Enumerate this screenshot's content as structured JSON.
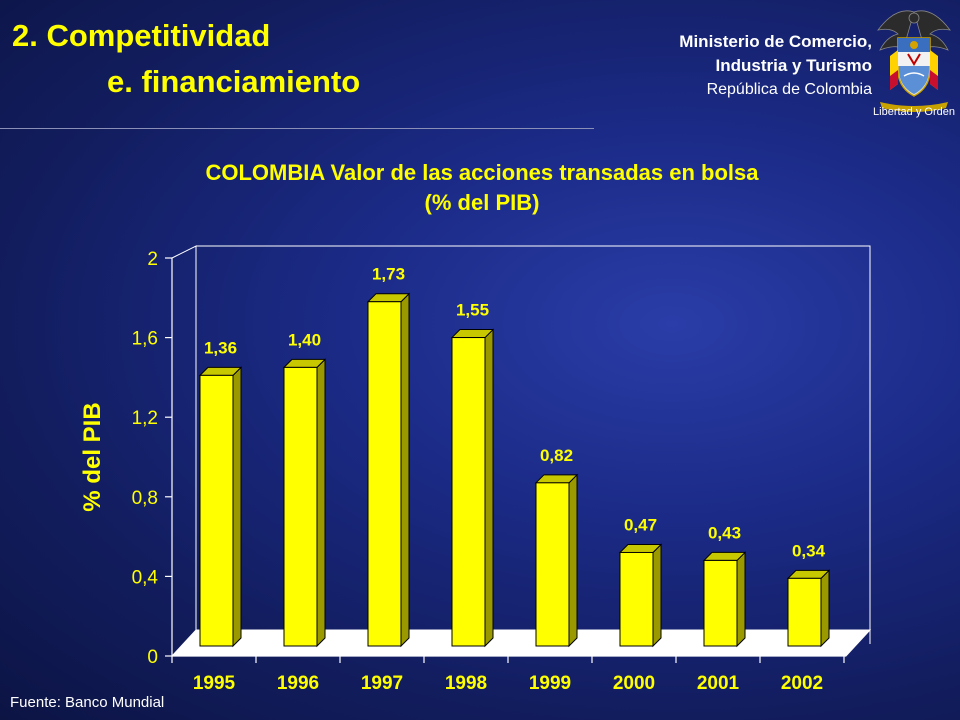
{
  "slide": {
    "title_line1": "2. Competitividad",
    "title_line2": "e. financiamiento",
    "ministry_line1": "Ministerio de Comercio,",
    "ministry_line2": "Industria y Turismo",
    "ministry_line3": "República de Colombia",
    "emblem_motto": "Libertad y Orden",
    "source": "Fuente: Banco Mundial",
    "colors": {
      "background": "#1b2a86",
      "accent": "#ffff00",
      "bar_face": "#ffff00",
      "bar_side": "#9a9a00"
    }
  },
  "chart_data": {
    "type": "bar",
    "title_line1": "COLOMBIA Valor de las acciones transadas en bolsa",
    "title_line2": "(% del PIB)",
    "ylabel": "% del PIB",
    "xlabel": "",
    "categories": [
      "1995",
      "1996",
      "1997",
      "1998",
      "1999",
      "2000",
      "2001",
      "2002"
    ],
    "values": [
      1.36,
      1.4,
      1.73,
      1.55,
      0.82,
      0.47,
      0.43,
      0.34
    ],
    "value_labels": [
      "1,36",
      "1,40",
      "1,73",
      "1,55",
      "0,82",
      "0,47",
      "0,43",
      "0,34"
    ],
    "ylim": [
      0,
      2
    ],
    "yticks": [
      0,
      0.4,
      0.8,
      1.2,
      1.6,
      2
    ],
    "ytick_labels": [
      "0",
      "0,4",
      "0,8",
      "1,2",
      "1,6",
      "2"
    ],
    "grid": false,
    "legend": "none",
    "style": "3d-bar"
  }
}
